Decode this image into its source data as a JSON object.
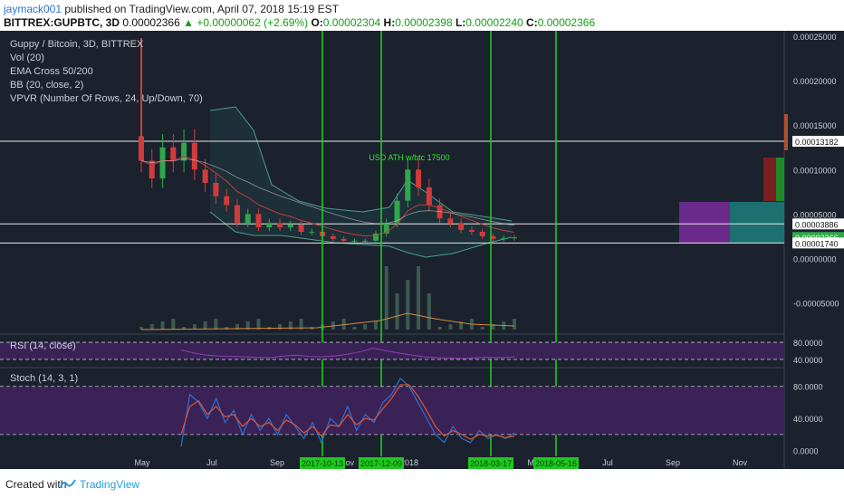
{
  "header": {
    "author": "jaymack001",
    "published": "published on TradingView.com, April 07, 2018 15:19 EST",
    "symbol_line": "BITTREX:GUPBTC, 3D",
    "last": "0.00002366",
    "change": "+0.00000062 (+2.69%)",
    "o_label": "O:",
    "o": "0.00002304",
    "h_label": "H:",
    "h": "0.00002398",
    "l_label": "L:",
    "l": "0.00002240",
    "c_label": "C:",
    "c": "0.00002366"
  },
  "legend": {
    "main": [
      "Guppy / Bitcoin, 3D, BITTREX",
      "Vol (20)",
      "EMA Cross 50/200",
      "BB (20, close, 2)",
      "VPVR (Number Of Rows, 24, Up/Down, 70)"
    ],
    "rsi": "RSI (14, close)",
    "stoch": "Stoch (14, 3, 1)"
  },
  "footer": {
    "created": "Created with",
    "brand": "TradingView"
  },
  "colors": {
    "background": "#1b222d",
    "up_candle": "#2fa84b",
    "down_candle": "#d23b3b",
    "vertical_marker": "#1fd31f",
    "bb_band": "#4a9e8c",
    "ema_short": "#c23b3b",
    "rsi_band": "#3a2257",
    "rsi_line": "#8a3fb0",
    "stoch_k": "#2a6fd6",
    "stoch_d": "#e0552b",
    "date_badge": "#1ec81e",
    "volume_ma": "#d68a3a"
  },
  "chart_data": [
    {
      "type": "candlestick",
      "title": "Guppy / Bitcoin, 3D, BITTREX",
      "price_axis_ticks": [
        "0.00025000",
        "0.00020000",
        "0.00015000",
        "0.00010000",
        "0.00005000",
        "0.00000000",
        "-0.00005000"
      ],
      "price_axis_values": [
        0.00025,
        0.0002,
        0.00015,
        0.0001,
        5e-05,
        0.0,
        -5e-05
      ],
      "ylim": [
        -8e-05,
        0.00025
      ],
      "price_labels": [
        "0.00013182",
        "0.00003886",
        "0.00002366",
        "0.00001740"
      ],
      "horizontal_lines": [
        0.00013182,
        3.886e-05,
        1.74e-05
      ],
      "x_tick_labels": [
        "May",
        "Jul",
        "Sep",
        "Nov",
        "2018",
        "Mar",
        "May",
        "Jul",
        "Sep",
        "Nov"
      ],
      "highlighted_dates": [
        "2017-10-13",
        "2017-12-09",
        "2018-03-17",
        "2018-05-16"
      ],
      "annotation": "USD ATH w/btc 17500",
      "closes": [
        0.00011,
        9e-05,
        0.000125,
        0.00011,
        0.00013,
        0.0001,
        8.5e-05,
        7e-05,
        6e-05,
        4e-05,
        5e-05,
        3.5e-05,
        4e-05,
        3.5e-05,
        3.8e-05,
        3e-05,
        3e-05,
        2.5e-05,
        2.2e-05,
        2e-05,
        2e-05,
        2e-05,
        2.8e-05,
        4e-05,
        6.5e-05,
        0.0001,
        8e-05,
        6e-05,
        4.5e-05,
        4e-05,
        3.2e-05,
        3e-05,
        2.5e-05,
        2.2e-05,
        2.3e-05,
        2.366e-05
      ]
    },
    {
      "type": "line",
      "title": "RSI (14, close)",
      "ticks": [
        "80.0000",
        "40.0000"
      ],
      "tick_values": [
        80,
        40
      ],
      "ylim": [
        25,
        95
      ],
      "values": [
        62,
        55,
        50,
        48,
        47,
        46,
        45,
        44,
        48,
        50,
        47,
        46,
        48,
        52,
        58,
        66,
        60,
        55,
        50,
        46,
        44,
        43,
        42,
        44,
        45,
        44,
        46
      ]
    },
    {
      "type": "line",
      "title": "Stoch (14, 3, 1)",
      "ticks": [
        "80.0000",
        "40.0000",
        "0.0000"
      ],
      "tick_values": [
        80,
        40,
        0
      ],
      "ylim": [
        -5,
        100
      ],
      "series": [
        {
          "values": [
            5,
            70,
            60,
            40,
            65,
            35,
            50,
            20,
            45,
            25,
            40,
            20,
            45,
            30,
            15,
            35,
            10,
            40,
            30,
            55,
            25,
            45,
            35,
            60,
            70,
            90,
            80,
            60,
            40,
            20,
            10,
            30,
            15,
            10,
            25,
            15,
            20,
            15,
            22
          ]
        },
        {
          "values": [
            20,
            55,
            62,
            45,
            55,
            42,
            45,
            30,
            40,
            30,
            35,
            25,
            38,
            32,
            22,
            30,
            18,
            32,
            30,
            45,
            32,
            40,
            38,
            52,
            65,
            82,
            82,
            68,
            50,
            30,
            18,
            25,
            20,
            14,
            20,
            18,
            19,
            16,
            18
          ]
        }
      ]
    }
  ]
}
